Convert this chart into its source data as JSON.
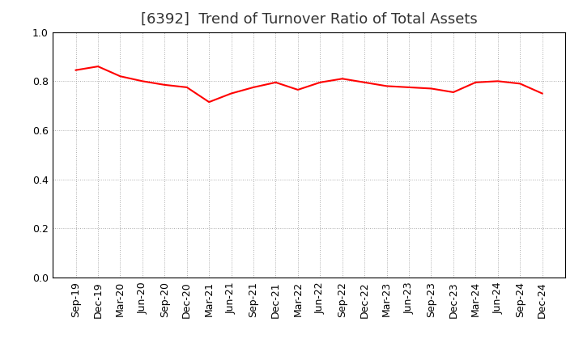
{
  "title": "[6392]  Trend of Turnover Ratio of Total Assets",
  "x_labels": [
    "Sep-19",
    "Dec-19",
    "Mar-20",
    "Jun-20",
    "Sep-20",
    "Dec-20",
    "Mar-21",
    "Jun-21",
    "Sep-21",
    "Dec-21",
    "Mar-22",
    "Jun-22",
    "Sep-22",
    "Dec-22",
    "Mar-23",
    "Jun-23",
    "Sep-23",
    "Dec-23",
    "Mar-24",
    "Jun-24",
    "Sep-24",
    "Dec-24"
  ],
  "values": [
    0.845,
    0.86,
    0.82,
    0.8,
    0.785,
    0.775,
    0.715,
    0.75,
    0.775,
    0.795,
    0.765,
    0.795,
    0.81,
    0.795,
    0.78,
    0.775,
    0.77,
    0.755,
    0.795,
    0.8,
    0.79,
    0.75
  ],
  "line_color": "#FF0000",
  "line_width": 1.5,
  "ylim": [
    0.0,
    1.0
  ],
  "yticks": [
    0.0,
    0.2,
    0.4,
    0.6,
    0.8,
    1.0
  ],
  "background_color": "#ffffff",
  "grid_color": "#aaaaaa",
  "title_fontsize": 13,
  "tick_fontsize": 9
}
